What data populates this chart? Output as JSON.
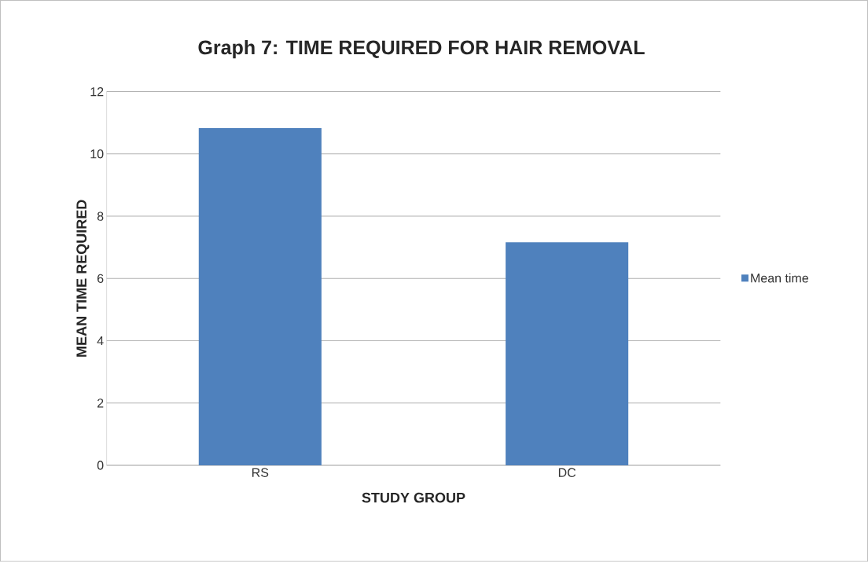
{
  "chart_data": {
    "type": "bar",
    "title": "Graph 7: TIME REQUIRED FOR HAIR REMOVAL",
    "xlabel": "STUDY GROUP",
    "ylabel": "MEAN TIME REQUIRED",
    "categories": [
      "RS",
      "DC"
    ],
    "series": [
      {
        "name": "Mean time",
        "color": "#4f81bd",
        "values": [
          10.83,
          7.16
        ]
      }
    ],
    "ylim": [
      0,
      12
    ],
    "yticks": [
      0,
      2,
      4,
      6,
      8,
      10,
      12
    ],
    "grid": "y",
    "legend": "right"
  }
}
